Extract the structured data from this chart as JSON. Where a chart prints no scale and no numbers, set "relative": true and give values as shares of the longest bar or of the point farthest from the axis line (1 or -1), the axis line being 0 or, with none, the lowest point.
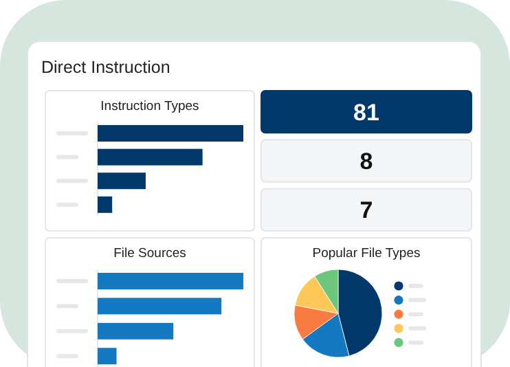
{
  "chart_data": [
    {
      "type": "other",
      "title": "Direct Instruction"
    },
    {
      "type": "bar",
      "title": "Instruction Types",
      "orientation": "horizontal",
      "relative": true,
      "categories": [
        null,
        null,
        null,
        null
      ],
      "values": [
        1,
        0.72,
        0.33,
        0.1
      ],
      "color": "#03386a"
    },
    {
      "type": "other",
      "annotations": [
        "81",
        "8",
        "7"
      ],
      "colors": [
        "#03386a",
        "#f4f5f7",
        "#f4f5f7"
      ]
    },
    {
      "type": "bar",
      "title": "File Sources",
      "orientation": "horizontal",
      "relative": true,
      "categories": [
        null,
        null,
        null,
        null
      ],
      "values": [
        1,
        0.85,
        0.52,
        0.13
      ],
      "color": "#1479c1"
    },
    {
      "type": "pie",
      "title": "Popular File Types",
      "categories": [
        null,
        null,
        null,
        null,
        null
      ],
      "values": [
        46,
        19,
        13,
        13,
        9
      ],
      "colors": [
        "#03386a",
        "#1479c1",
        "#f97b42",
        "#fec859",
        "#6cc77c"
      ]
    }
  ]
}
